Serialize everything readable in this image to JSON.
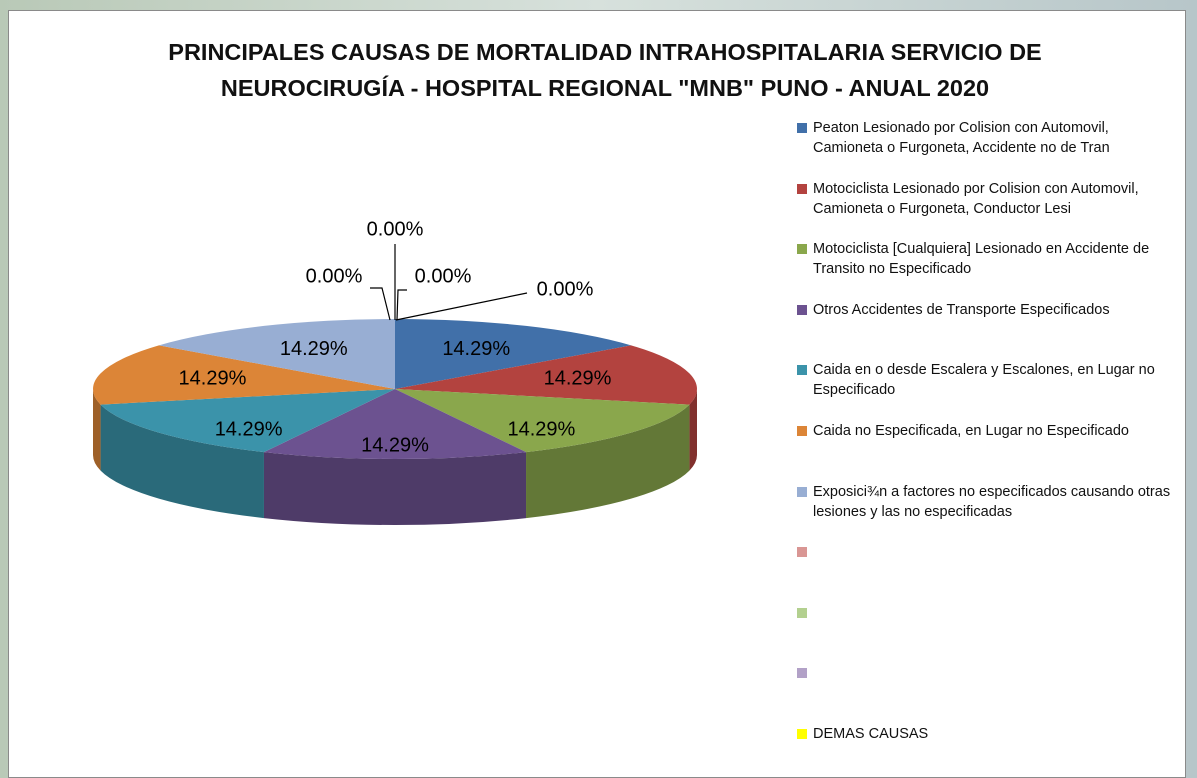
{
  "chart_data": {
    "type": "pie",
    "three_d": true,
    "title": "PRINCIPALES CAUSAS DE MORTALIDAD INTRAHOSPITALARIA SERVICIO DE NEUROCIRUGÍA - HOSPITAL REGIONAL \"MNB\" PUNO - ANUAL 2020",
    "categories": [
      "Peaton Lesionado por Colision con Automovil, Camioneta o Furgoneta, Accidente no de Tran",
      "Motociclista Lesionado por Colision con Automovil, Camioneta o Furgoneta, Conductor Lesi",
      "Motociclista [Cualquiera] Lesionado en Accidente de Transito no Especificado",
      "Otros Accidentes de Transporte Especificados",
      "Caida en o desde Escalera y Escalones, en Lugar no Especificado",
      "Caida no Especificada, en Lugar no Especificado",
      "Exposici¾n a factores no especificados causando otras lesiones y las no especificadas",
      null,
      null,
      null,
      "DEMAS CAUSAS"
    ],
    "values": [
      14.29,
      14.29,
      14.29,
      14.29,
      14.29,
      14.29,
      14.29,
      0,
      0,
      0,
      0
    ],
    "value_labels": [
      "14.29%",
      "14.29%",
      "14.29%",
      "14.29%",
      "14.29%",
      "14.29%",
      "14.29%",
      "0.00%",
      "0.00%",
      "0.00%",
      "0.00%"
    ],
    "colors": [
      "#4170a9",
      "#b3433f",
      "#8aa74c",
      "#6c5290",
      "#3b93aa",
      "#dc8537",
      "#98aed3",
      "#d99694",
      "#b3d08f",
      "#b2a1c7",
      "#ffff00"
    ],
    "legend": "right"
  }
}
